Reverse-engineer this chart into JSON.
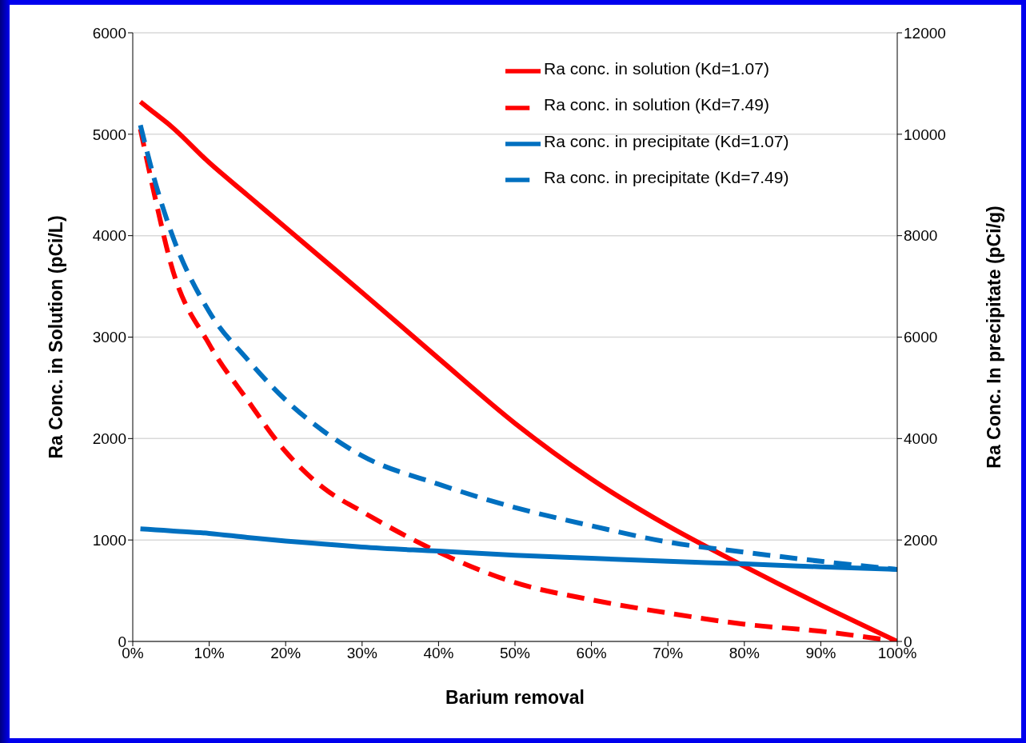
{
  "chart_data": {
    "type": "line",
    "xlabel": "Barium removal",
    "ylabel": "Ra Conc. in Solution (pCi/L)",
    "y2label": "Ra Conc. In precipitate (pCi/g)",
    "x": [
      1,
      3,
      5,
      10,
      15,
      20,
      25,
      30,
      40,
      50,
      60,
      70,
      80,
      90,
      100
    ],
    "xlim": [
      0,
      100
    ],
    "xticks": [
      {
        "value": 0,
        "label": "0%"
      },
      {
        "value": 10,
        "label": "10%"
      },
      {
        "value": 20,
        "label": "20%"
      },
      {
        "value": 30,
        "label": "30%"
      },
      {
        "value": 40,
        "label": "40%"
      },
      {
        "value": 50,
        "label": "50%"
      },
      {
        "value": 60,
        "label": "60%"
      },
      {
        "value": 70,
        "label": "70%"
      },
      {
        "value": 80,
        "label": "80%"
      },
      {
        "value": 90,
        "label": "90%"
      },
      {
        "value": 100,
        "label": "100%"
      }
    ],
    "ylim": [
      0,
      6000
    ],
    "yticks": [
      0,
      1000,
      2000,
      3000,
      4000,
      5000,
      6000
    ],
    "y2lim": [
      0,
      12000
    ],
    "y2ticks": [
      0,
      2000,
      4000,
      6000,
      8000,
      10000,
      12000
    ],
    "grid": "y",
    "legend": "top right",
    "marker": "none",
    "series": [
      {
        "name": "Ra conc. in solution (Kd=1.07)",
        "color": "#ff0000",
        "line_style": "solid",
        "values": [
          5320,
          5200,
          5080,
          4720,
          4400,
          4080,
          3760,
          3440,
          2790,
          2150,
          1600,
          1140,
          740,
          360,
          0
        ]
      },
      {
        "name": "Ra conc. in solution (Kd=7.49)",
        "color": "#ff0000",
        "line_style": "dashed",
        "values": [
          5050,
          4350,
          3720,
          2930,
          2380,
          1870,
          1510,
          1280,
          880,
          580,
          410,
          280,
          170,
          100,
          0
        ]
      },
      {
        "name": "Ra conc. in precipitate (Kd=1.07)",
        "color": "#0070c0",
        "line_style": "solid",
        "axis": "y2",
        "values": [
          2220,
          2200,
          2180,
          2130,
          2050,
          1980,
          1920,
          1860,
          1780,
          1700,
          1640,
          1580,
          1530,
          1470,
          1420
        ]
      },
      {
        "name": "Ra conc. in precipitate (Kd=7.49)",
        "color": "#0070c0",
        "line_style": "dashed",
        "axis": "y2",
        "values": [
          10180,
          9020,
          8080,
          6500,
          5560,
          4760,
          4140,
          3660,
          3100,
          2640,
          2280,
          1960,
          1760,
          1580,
          1420
        ]
      }
    ]
  }
}
